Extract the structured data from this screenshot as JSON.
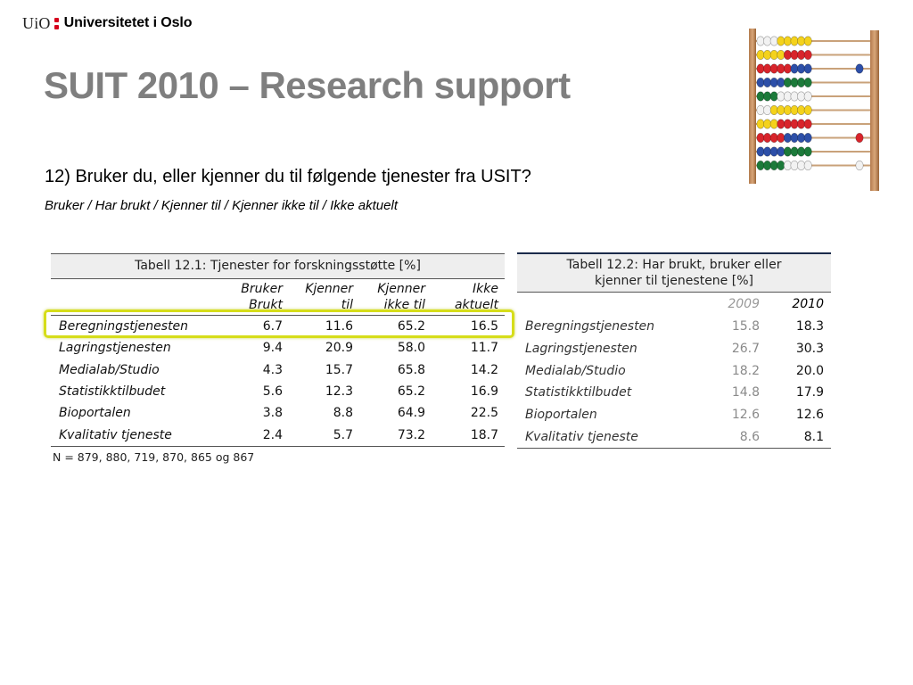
{
  "header": {
    "logo_uio": "UiO",
    "logo_name": "Universitetet i Oslo"
  },
  "slide": {
    "title": "SUIT 2010 – Research support",
    "question": "12) Bruker du, eller kjenner du til følgende tjenester fra USIT?",
    "subtitle": "Bruker / Har brukt / Kjenner til / Kjenner ikke til / Ikke aktuelt"
  },
  "table1": {
    "caption": "Tabell 12.1: Tjenester for forskningsstøtte [%]",
    "columns": [
      {
        "line1": "Bruker",
        "line2": "Brukt"
      },
      {
        "line1": "Kjenner",
        "line2": "til"
      },
      {
        "line1": "Kjenner",
        "line2": "ikke til"
      },
      {
        "line1": "Ikke",
        "line2": "aktuelt"
      }
    ],
    "rows": [
      {
        "label": "Beregningstjenesten",
        "values": [
          "6.7",
          "11.6",
          "65.2",
          "16.5"
        ]
      },
      {
        "label": "Lagringstjenesten",
        "values": [
          "9.4",
          "20.9",
          "58.0",
          "11.7"
        ]
      },
      {
        "label": "Medialab/Studio",
        "values": [
          "4.3",
          "15.7",
          "65.8",
          "14.2"
        ]
      },
      {
        "label": "Statistikktilbudet",
        "values": [
          "5.6",
          "12.3",
          "65.2",
          "16.9"
        ]
      },
      {
        "label": "Bioportalen",
        "values": [
          "3.8",
          "8.8",
          "64.9",
          "22.5"
        ]
      },
      {
        "label": "Kvalitativ tjeneste",
        "values": [
          "2.4",
          "5.7",
          "73.2",
          "18.7"
        ]
      }
    ],
    "note": "N = 879, 880, 719, 870, 865 og 867",
    "highlight_color": "#d6dd1a"
  },
  "table2": {
    "caption_line1": "Tabell 12.2: Har brukt, bruker eller",
    "caption_line2": "kjenner til tjenestene [%]",
    "columns": [
      "2009",
      "2010"
    ],
    "rows": [
      {
        "label": "Beregningstjenesten",
        "values": [
          "15.8",
          "18.3"
        ]
      },
      {
        "label": "Lagringstjenesten",
        "values": [
          "26.7",
          "30.3"
        ]
      },
      {
        "label": "Medialab/Studio",
        "values": [
          "18.2",
          "20.0"
        ]
      },
      {
        "label": "Statistikktilbudet",
        "values": [
          "14.8",
          "17.9"
        ]
      },
      {
        "label": "Bioportalen",
        "values": [
          "12.6",
          "12.6"
        ]
      },
      {
        "label": "Kvalitativ tjeneste",
        "values": [
          "8.6",
          "8.1"
        ]
      }
    ]
  },
  "colors": {
    "title": "#7f7f7f",
    "logo_red": "#d6001c"
  }
}
